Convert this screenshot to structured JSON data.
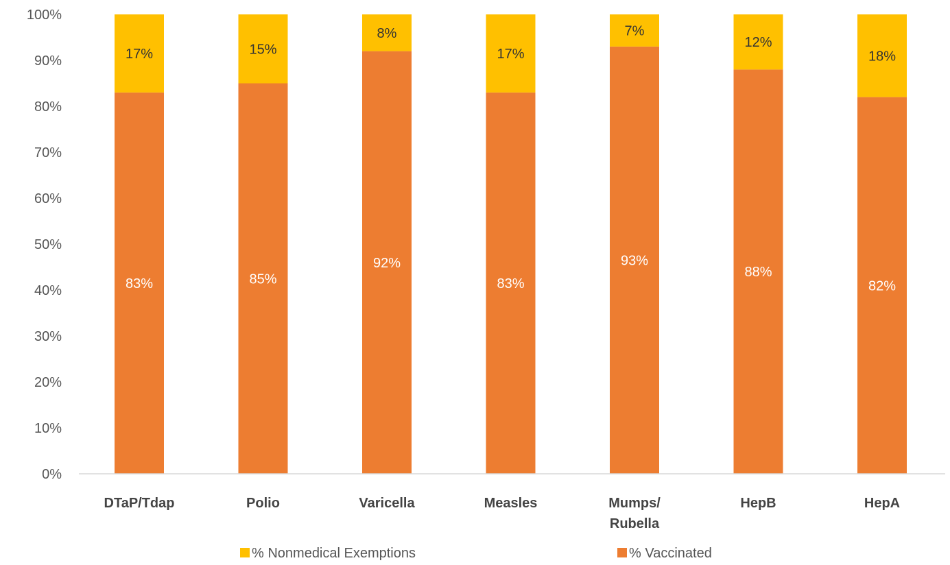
{
  "chart_data": {
    "type": "bar",
    "stacked": true,
    "categories": [
      [
        "DTaP/Tdap"
      ],
      [
        "Polio"
      ],
      [
        "Varicella"
      ],
      [
        "Measles"
      ],
      [
        "Mumps/",
        "Rubella"
      ],
      [
        "HepB"
      ],
      [
        "HepA"
      ]
    ],
    "series": [
      {
        "name": "% Vaccinated",
        "color": "#ED7D31",
        "values": [
          83,
          85,
          92,
          83,
          93,
          88,
          82
        ],
        "labels": [
          "83%",
          "85%",
          "92%",
          "83%",
          "93%",
          "88%",
          "82%"
        ]
      },
      {
        "name": "% Nonmedical Exemptions",
        "color": "#FFC000",
        "values": [
          17,
          15,
          8,
          17,
          7,
          12,
          18
        ],
        "labels": [
          "17%",
          "15%",
          "8%",
          "17%",
          "7%",
          "12%",
          "18%"
        ]
      }
    ],
    "y_ticks": [
      "0%",
      "10%",
      "20%",
      "30%",
      "40%",
      "50%",
      "60%",
      "70%",
      "80%",
      "90%",
      "100%"
    ],
    "ylim": [
      0,
      100
    ],
    "grid": false,
    "legend": {
      "position": "bottom",
      "order": [
        "% Nonmedical Exemptions",
        "% Vaccinated"
      ]
    },
    "title": "",
    "xlabel": "",
    "ylabel": ""
  }
}
